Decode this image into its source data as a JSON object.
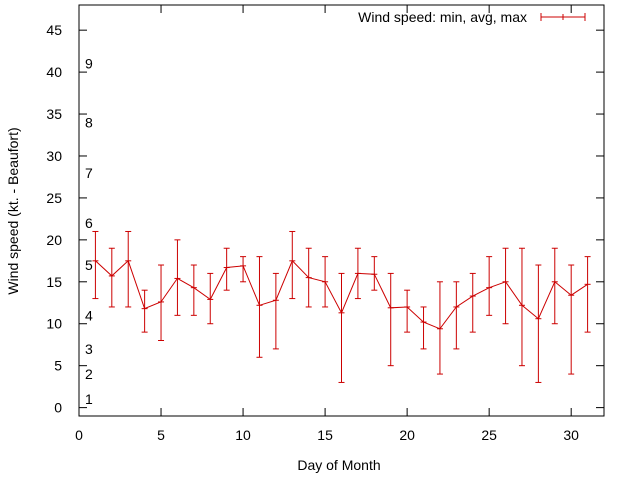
{
  "chart_data": {
    "type": "line",
    "title": "",
    "xlabel": "Day of Month",
    "ylabel": "Wind speed (kt. - Beaufort)",
    "xlim": [
      0,
      32
    ],
    "ylim": [
      -1,
      48
    ],
    "x_ticks": [
      0,
      5,
      10,
      15,
      20,
      25,
      30
    ],
    "y_ticks": [
      0,
      5,
      10,
      15,
      20,
      25,
      30,
      35,
      40,
      45
    ],
    "grid": false,
    "legend_position": "top-right",
    "series_color": "#cc0000",
    "series": [
      {
        "name": "Wind speed: min, avg, max",
        "x": [
          1,
          2,
          3,
          4,
          5,
          6,
          7,
          8,
          9,
          10,
          11,
          12,
          13,
          14,
          15,
          16,
          17,
          18,
          19,
          20,
          21,
          22,
          23,
          24,
          25,
          26,
          27,
          28,
          29,
          30,
          31
        ],
        "avg": [
          17.5,
          15.7,
          17.5,
          11.8,
          12.6,
          15.4,
          14.3,
          12.9,
          16.7,
          16.9,
          12.2,
          12.8,
          17.5,
          15.5,
          15.0,
          11.3,
          16.0,
          15.9,
          11.9,
          12.0,
          10.2,
          9.4,
          12.0,
          13.3,
          14.3,
          15.0,
          12.2,
          10.6,
          15.0,
          13.4,
          14.7
        ],
        "min": [
          13,
          12,
          12,
          9,
          8,
          11,
          11,
          10,
          14,
          15,
          6,
          7,
          13,
          12,
          12,
          3,
          13,
          14,
          5,
          9,
          7,
          4,
          7,
          9,
          11,
          10,
          5,
          3,
          10,
          4,
          9
        ],
        "max": [
          21,
          19,
          21,
          14,
          17,
          20,
          17,
          16,
          19,
          18,
          18,
          16,
          21,
          19,
          18,
          16,
          19,
          18,
          16,
          14,
          12,
          15,
          15,
          16,
          18,
          19,
          19,
          17,
          19,
          17,
          18
        ]
      }
    ],
    "beaufort_labels": [
      {
        "label": "1",
        "y": 1
      },
      {
        "label": "2",
        "y": 4
      },
      {
        "label": "3",
        "y": 7
      },
      {
        "label": "4",
        "y": 11
      },
      {
        "label": "5",
        "y": 17
      },
      {
        "label": "6",
        "y": 22
      },
      {
        "label": "7",
        "y": 28
      },
      {
        "label": "8",
        "y": 34
      },
      {
        "label": "9",
        "y": 41
      }
    ]
  }
}
